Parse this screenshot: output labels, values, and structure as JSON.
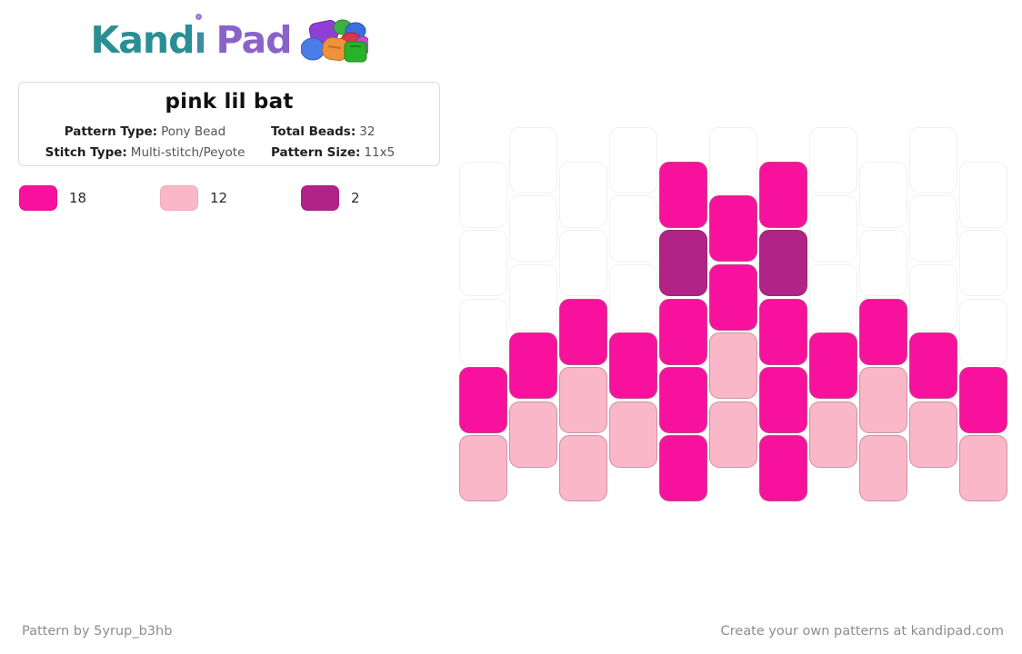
{
  "logo": {
    "full_name": "Kandi Pad",
    "stem": "Kand",
    "i_char": "ı",
    "pad": "Pad",
    "teal": "#2a8f93",
    "purple": "#8a63c9"
  },
  "card": {
    "title": "pink lil bat",
    "fields": {
      "pattern_type_label": "Pattern Type:",
      "pattern_type_value": "Pony Bead",
      "total_beads_label": "Total Beads:",
      "total_beads_value": "32",
      "stitch_type_label": "Stitch Type:",
      "stitch_type_value": "Multi-stitch/Peyote",
      "pattern_size_label": "Pattern Size:",
      "pattern_size_value": "11x5"
    }
  },
  "legend": [
    {
      "color": "#f8119c",
      "count": "18"
    },
    {
      "color": "#f9b7c7",
      "count": "12"
    },
    {
      "color": "#b12387",
      "count": "2"
    }
  ],
  "chart_data": {
    "type": "heatmap",
    "title": "pink lil bat bead pattern",
    "columns_count": 11,
    "rows_count": 5,
    "stagger": "odd-columns-lowered-half-bead",
    "palette": {
      "0": {
        "name": "empty",
        "fill": "#ffffff",
        "border": "#f0f0f0"
      },
      "1": {
        "name": "hot-pink",
        "fill": "#f8119c",
        "border": "#bf4a85"
      },
      "2": {
        "name": "light-pink",
        "fill": "#f9b7c7",
        "border": "#cc93a6"
      },
      "3": {
        "name": "dark-magenta",
        "fill": "#b12387",
        "border": "#8a3070"
      }
    },
    "columns": [
      "00012",
      "00012",
      "00122",
      "00012",
      "13111",
      "01122",
      "13111",
      "00012",
      "00122",
      "00012",
      "00012"
    ]
  },
  "footer": {
    "left": "Pattern by 5yrup_b3hb",
    "right": "Create your own patterns at kandipad.com"
  }
}
